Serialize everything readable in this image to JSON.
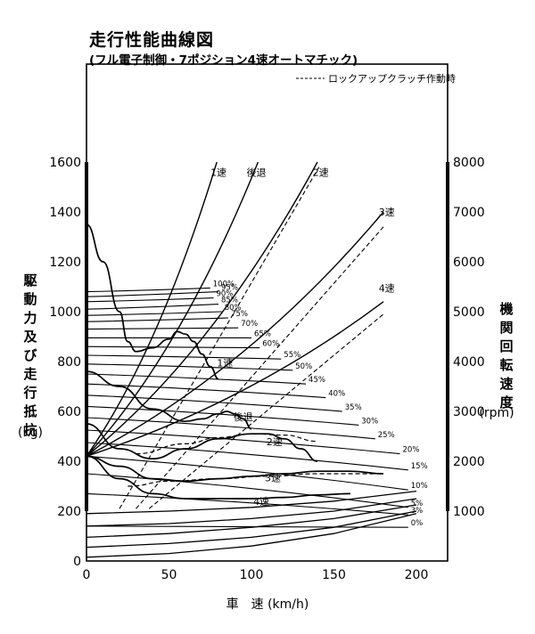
{
  "chart_data": {
    "type": "line",
    "title": "走行性能曲線図",
    "subtitle": "(フル電子制御・7ポジション4速オートマチック)",
    "legend": {
      "dashed": "ロックアップクラッチ作動時"
    },
    "xlabel": "車　速 (km/h)",
    "ylabel_left": "駆動力及び走行抵抗 (kg)",
    "ylabel_right": "機関回転速度 (rpm)",
    "xlim": [
      0,
      200
    ],
    "ylim_left": [
      0,
      1600
    ],
    "ylim_right": [
      0,
      8000
    ],
    "x_ticks": [
      "0",
      "50",
      "100",
      "150",
      "200"
    ],
    "y_ticks_left": [
      "0",
      "200",
      "400",
      "600",
      "800",
      "1000",
      "1200",
      "1400",
      "1600"
    ],
    "y_ticks_right": [
      "1000",
      "2000",
      "3000",
      "4000",
      "5000",
      "6000",
      "7000",
      "8000"
    ],
    "engine_speed_lines": [
      {
        "name": "1速",
        "x": [
          0,
          79
        ],
        "y": [
          2100,
          8000
        ]
      },
      {
        "name": "後退",
        "x": [
          0,
          104
        ],
        "y": [
          2100,
          8000
        ]
      },
      {
        "name": "2速",
        "x": [
          0,
          140
        ],
        "y": [
          2100,
          8000
        ]
      },
      {
        "name": "3速",
        "x": [
          0,
          180
        ],
        "y": [
          2100,
          7000
        ]
      },
      {
        "name": "4速",
        "x": [
          0,
          180
        ],
        "y": [
          2100,
          5200
        ]
      }
    ],
    "lockup_lines": [
      {
        "name": "2速",
        "x": [
          20,
          141
        ],
        "y": [
          1050,
          7900
        ]
      },
      {
        "name": "3速",
        "x": [
          30,
          180
        ],
        "y": [
          1050,
          6700
        ]
      },
      {
        "name": "4速",
        "x": [
          38,
          180
        ],
        "y": [
          1050,
          4950
        ]
      }
    ],
    "throttle_lines": [
      {
        "label": "100%",
        "y0": 1080,
        "x1": 75,
        "y1": 1095
      },
      {
        "label": "95%",
        "y0": 1060,
        "x1": 80,
        "y1": 1080
      },
      {
        "label": "90%",
        "y0": 1040,
        "x1": 77,
        "y1": 1055
      },
      {
        "label": "85%",
        "y0": 1010,
        "x1": 80,
        "y1": 1030
      },
      {
        "label": "80%",
        "y0": 985,
        "x1": 82,
        "y1": 1000
      },
      {
        "label": "75%",
        "y0": 960,
        "x1": 86,
        "y1": 975
      },
      {
        "label": "70%",
        "y0": 930,
        "x1": 92,
        "y1": 935
      },
      {
        "label": "65%",
        "y0": 895,
        "x1": 100,
        "y1": 895
      },
      {
        "label": "60%",
        "y0": 860,
        "x1": 105,
        "y1": 855
      },
      {
        "label": "55%",
        "y0": 825,
        "x1": 118,
        "y1": 810
      },
      {
        "label": "50%",
        "y0": 790,
        "x1": 125,
        "y1": 765
      },
      {
        "label": "45%",
        "y0": 750,
        "x1": 133,
        "y1": 710
      },
      {
        "label": "40%",
        "y0": 710,
        "x1": 145,
        "y1": 655
      },
      {
        "label": "35%",
        "y0": 665,
        "x1": 155,
        "y1": 600
      },
      {
        "label": "30%",
        "y0": 620,
        "x1": 165,
        "y1": 545
      },
      {
        "label": "25%",
        "y0": 575,
        "x1": 175,
        "y1": 490
      },
      {
        "label": "20%",
        "y0": 525,
        "x1": 190,
        "y1": 430
      },
      {
        "label": "15%",
        "y0": 475,
        "x1": 195,
        "y1": 365
      },
      {
        "label": "10%",
        "y0": 420,
        "x1": 195,
        "y1": 285
      },
      {
        "label": "5%",
        "y0": 350,
        "x1": 195,
        "y1": 215
      },
      {
        "label": "3%",
        "y0": 270,
        "x1": 195,
        "y1": 185
      },
      {
        "label": "0%",
        "y0": 140,
        "x1": 195,
        "y1": 135
      }
    ],
    "road_load": [
      {
        "grade": "a",
        "x": [
          0,
          50,
          100,
          150,
          200
        ],
        "y": [
          15,
          30,
          60,
          110,
          190
        ]
      },
      {
        "grade": "b",
        "x": [
          0,
          50,
          100,
          150,
          200
        ],
        "y": [
          55,
          70,
          95,
          135,
          200
        ]
      },
      {
        "grade": "c",
        "x": [
          0,
          50,
          100,
          150,
          200
        ],
        "y": [
          95,
          110,
          135,
          170,
          225
        ]
      },
      {
        "grade": "d",
        "x": [
          0,
          50,
          100,
          150,
          200
        ],
        "y": [
          140,
          150,
          170,
          200,
          250
        ]
      },
      {
        "grade": "e",
        "x": [
          0,
          50,
          100,
          150,
          200
        ],
        "y": [
          190,
          200,
          215,
          240,
          280
        ]
      }
    ],
    "gear_force_curves": [
      {
        "name": "1速",
        "x": [
          0,
          10,
          20,
          25,
          30,
          40,
          50,
          55,
          60,
          65,
          70,
          75,
          80
        ],
        "y": [
          1350,
          1200,
          1000,
          880,
          840,
          855,
          890,
          920,
          910,
          880,
          830,
          780,
          730
        ]
      },
      {
        "name": "後退",
        "x": [
          0,
          20,
          40,
          60,
          70,
          80,
          85,
          90,
          95,
          100
        ],
        "y": [
          760,
          700,
          610,
          560,
          570,
          590,
          600,
          590,
          570,
          530
        ]
      },
      {
        "name": "2速",
        "x": [
          0,
          20,
          40,
          60,
          80,
          100,
          110,
          120,
          130,
          140
        ],
        "y": [
          550,
          450,
          410,
          450,
          490,
          510,
          510,
          490,
          450,
          400
        ]
      },
      {
        "name": "3速",
        "x": [
          0,
          20,
          40,
          60,
          80,
          100,
          120,
          140,
          160,
          180
        ],
        "y": [
          420,
          380,
          330,
          320,
          330,
          340,
          350,
          360,
          360,
          350
        ]
      },
      {
        "name": "4速",
        "x": [
          0,
          20,
          40,
          60,
          80,
          100,
          120,
          140,
          160
        ],
        "y": [
          420,
          330,
          270,
          250,
          250,
          250,
          255,
          265,
          270
        ]
      }
    ],
    "gear_force_lockup": [
      {
        "name": "2速",
        "x": [
          30,
          60,
          80,
          100,
          120,
          140
        ],
        "y": [
          430,
          470,
          495,
          510,
          505,
          480
        ]
      },
      {
        "name": "3速",
        "x": [
          25,
          50,
          80,
          110,
          140,
          160,
          180
        ],
        "y": [
          300,
          320,
          330,
          340,
          350,
          350,
          350
        ]
      }
    ],
    "annotations": [
      {
        "text": "1速",
        "x": 80,
        "y": 1545
      },
      {
        "text": "後退",
        "x": 103,
        "y": 1545
      },
      {
        "text": "2速",
        "x": 142,
        "y": 1545
      },
      {
        "text": "3速",
        "x": 182,
        "y": 1385
      },
      {
        "text": "4速",
        "x": 182,
        "y": 1080
      },
      {
        "text": "1速",
        "x": 84,
        "y": 780
      },
      {
        "text": "後退",
        "x": 95,
        "y": 565
      },
      {
        "text": "2速",
        "x": 114,
        "y": 465
      },
      {
        "text": "3速",
        "x": 113,
        "y": 320
      },
      {
        "text": "4速",
        "x": 106,
        "y": 225
      }
    ],
    "grid": false
  }
}
